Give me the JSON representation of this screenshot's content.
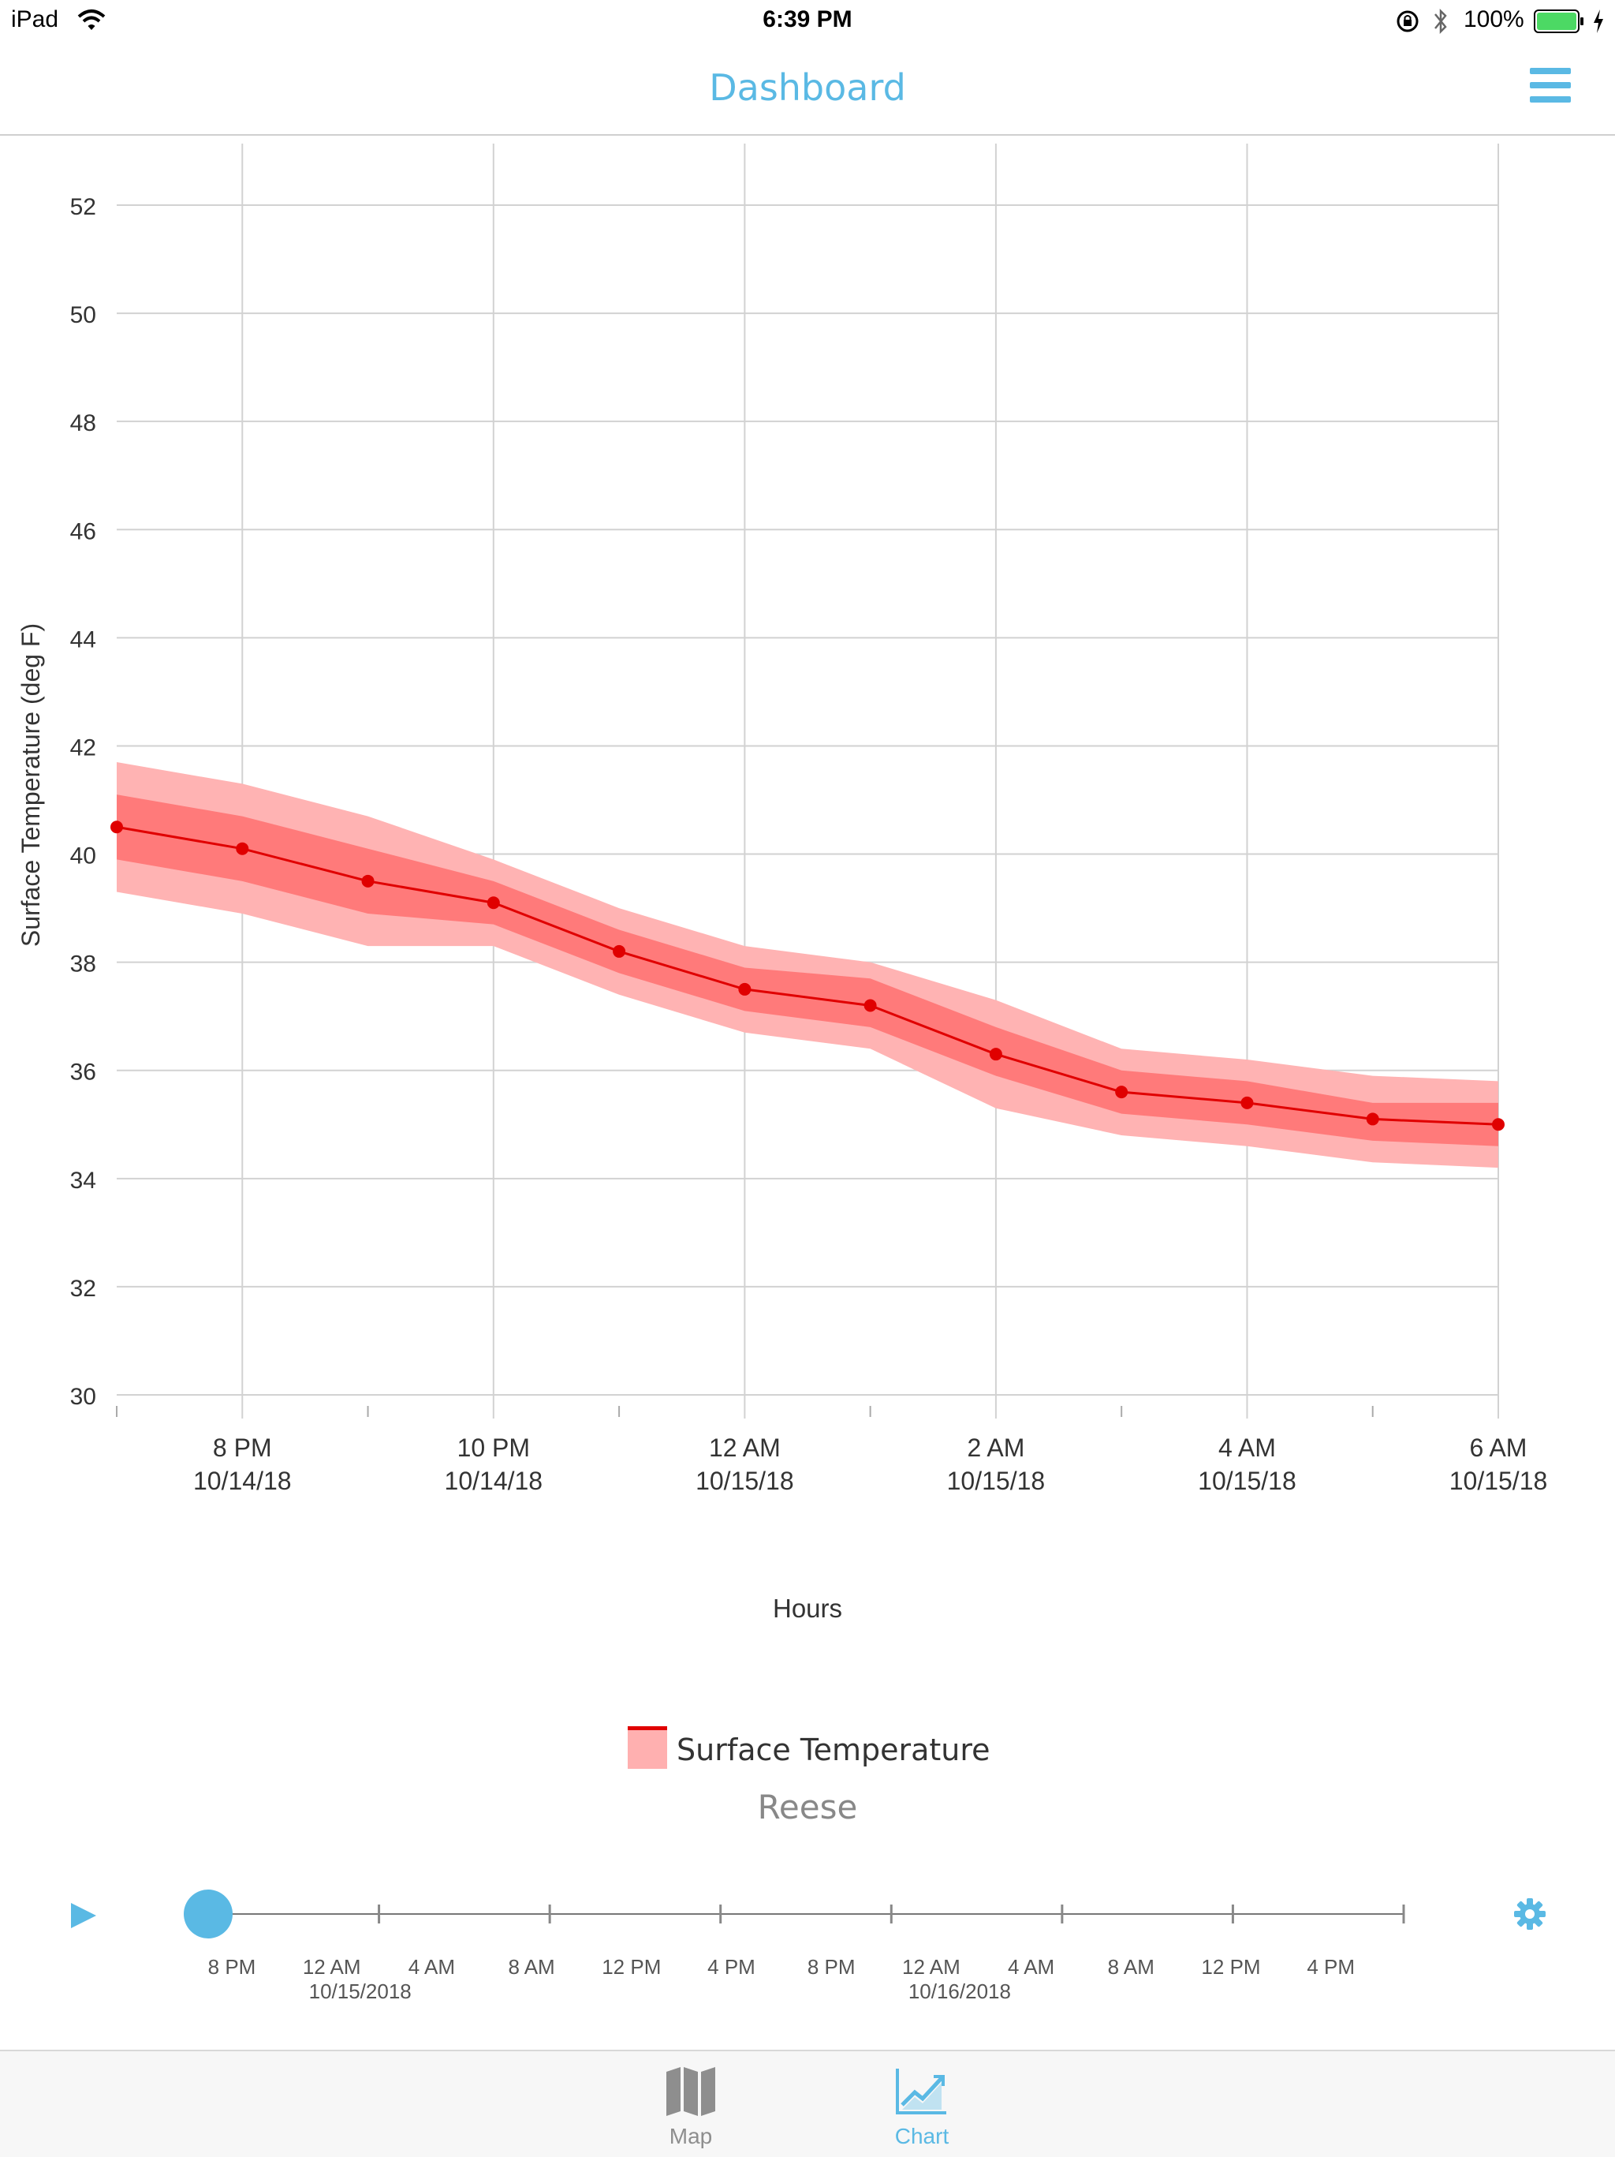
{
  "status_bar": {
    "device": "iPad",
    "time": "6:39 PM",
    "battery": "100%"
  },
  "nav": {
    "title": "Dashboard"
  },
  "colors": {
    "accent": "#5ab9e4",
    "series_line": "#e00000",
    "inner_band": "#ff7a7a",
    "outer_band": "#ffb3b3"
  },
  "chart_data": {
    "type": "line",
    "title": "",
    "xlabel": "Hours",
    "ylabel": "Surface Temperature (deg F)",
    "ylim": [
      30,
      52
    ],
    "y_ticks": [
      "30",
      "32",
      "34",
      "36",
      "38",
      "40",
      "42",
      "44",
      "46",
      "48",
      "50",
      "52"
    ],
    "x_ticks": [
      {
        "time": "8 PM",
        "date": "10/14/18"
      },
      {
        "time": "10 PM",
        "date": "10/14/18"
      },
      {
        "time": "12 AM",
        "date": "10/15/18"
      },
      {
        "time": "2 AM",
        "date": "10/15/18"
      },
      {
        "time": "4 AM",
        "date": "10/15/18"
      },
      {
        "time": "6 AM",
        "date": "10/15/18"
      }
    ],
    "x": [
      "7 PM",
      "8 PM",
      "9 PM",
      "10 PM",
      "11 PM",
      "12 AM",
      "1 AM",
      "2 AM",
      "3 AM",
      "4 AM",
      "5 AM",
      "6 AM"
    ],
    "series": [
      {
        "name": "Surface Temperature",
        "values": [
          40.5,
          40.1,
          39.5,
          39.1,
          38.2,
          37.5,
          37.2,
          36.3,
          35.6,
          35.4,
          35.1,
          35.0
        ],
        "inner_upper": [
          41.1,
          40.7,
          40.1,
          39.5,
          38.6,
          37.9,
          37.7,
          36.8,
          36.0,
          35.8,
          35.4,
          35.4
        ],
        "inner_lower": [
          39.9,
          39.5,
          38.9,
          38.7,
          37.8,
          37.1,
          36.8,
          35.9,
          35.2,
          35.0,
          34.7,
          34.6
        ],
        "outer_upper": [
          41.7,
          41.3,
          40.7,
          39.9,
          39.0,
          38.3,
          38.0,
          37.3,
          36.4,
          36.2,
          35.9,
          35.8
        ],
        "outer_lower": [
          39.3,
          38.9,
          38.3,
          38.3,
          37.4,
          36.7,
          36.4,
          35.3,
          34.8,
          34.6,
          34.3,
          34.2
        ]
      }
    ],
    "legend": [
      "Surface Temperature"
    ],
    "legend_position": "bottom-center",
    "subtitle": "Reese",
    "grid": true
  },
  "timeline": {
    "labels": [
      {
        "time": "8 PM",
        "date": ""
      },
      {
        "time": "12 AM",
        "date": "10/15/2018"
      },
      {
        "time": "4 AM",
        "date": ""
      },
      {
        "time": "8 AM",
        "date": ""
      },
      {
        "time": "12 PM",
        "date": ""
      },
      {
        "time": "4 PM",
        "date": ""
      },
      {
        "time": "8 PM",
        "date": ""
      },
      {
        "time": "12 AM",
        "date": "10/16/2018"
      },
      {
        "time": "4 AM",
        "date": ""
      },
      {
        "time": "8 AM",
        "date": ""
      },
      {
        "time": "12 PM",
        "date": ""
      },
      {
        "time": "4 PM",
        "date": ""
      }
    ],
    "position": 0
  },
  "tabs": [
    {
      "label": "Map",
      "icon": "map-icon",
      "active": false
    },
    {
      "label": "Chart",
      "icon": "chart-icon",
      "active": true
    }
  ]
}
